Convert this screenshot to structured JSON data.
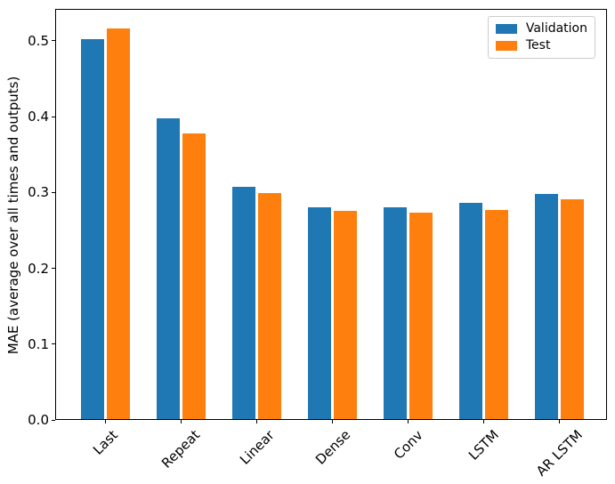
{
  "chart_data": {
    "type": "bar",
    "title": "",
    "categories": [
      "Last",
      "Repeat",
      "Linear",
      "Dense",
      "Conv",
      "LSTM",
      "AR LSTM"
    ],
    "series": [
      {
        "name": "Validation",
        "color": "#1f77b4",
        "values": [
          0.503,
          0.398,
          0.307,
          0.28,
          0.28,
          0.286,
          0.298
        ]
      },
      {
        "name": "Test",
        "color": "#ff7f0e",
        "values": [
          0.517,
          0.378,
          0.299,
          0.276,
          0.273,
          0.277,
          0.291
        ]
      }
    ],
    "xlabel": "",
    "ylabel": "MAE (average over all times and outputs)",
    "ylim": [
      0,
      0.542
    ],
    "yticks": [
      0.0,
      0.1,
      0.2,
      0.3,
      0.4,
      0.5
    ],
    "ytick_labels": [
      "0.0",
      "0.1",
      "0.2",
      "0.3",
      "0.4",
      "0.5"
    ],
    "grid": false,
    "legend": {
      "position": "upper right",
      "entries": [
        "Validation",
        "Test"
      ]
    }
  }
}
